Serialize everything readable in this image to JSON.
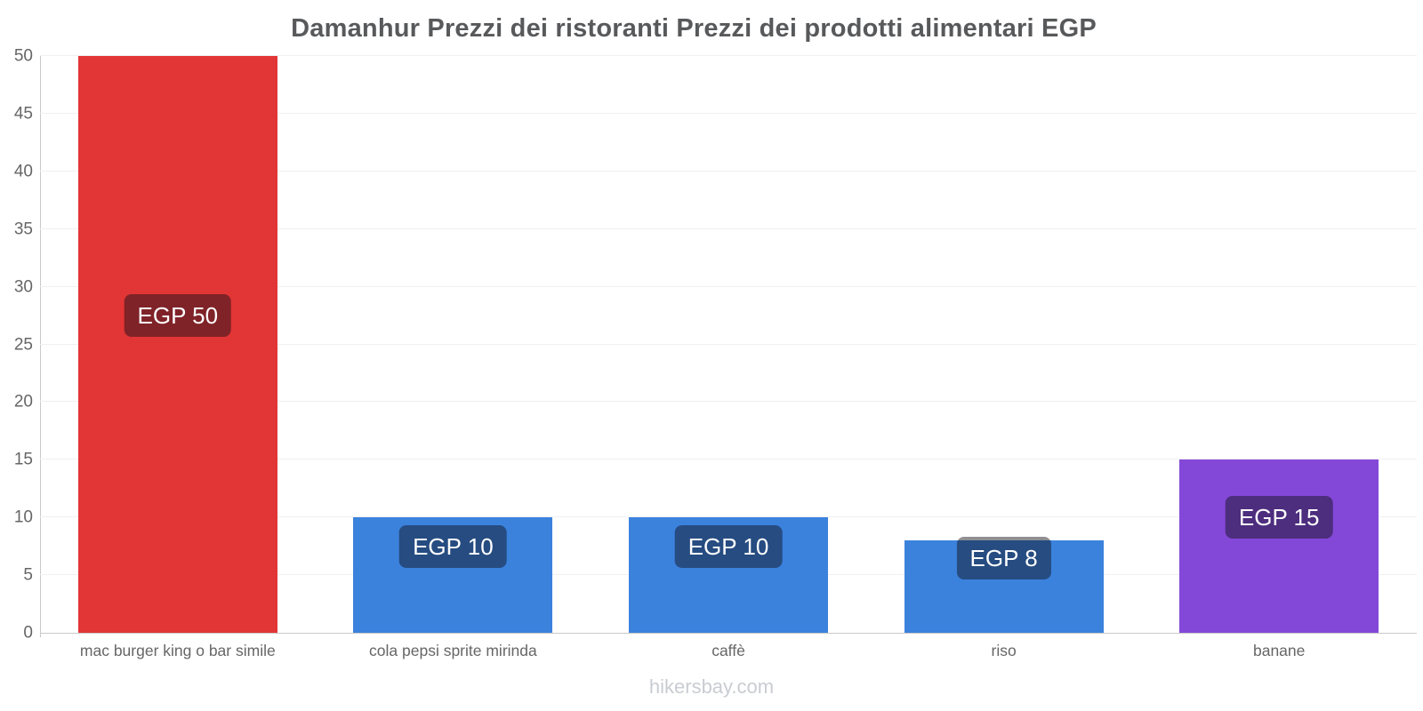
{
  "chart_data": {
    "type": "bar",
    "title": "Damanhur Prezzi dei ristoranti Prezzi dei prodotti alimentari EGP",
    "currency": "EGP",
    "categories": [
      "mac burger king o bar simile",
      "cola pepsi sprite mirinda",
      "caffè",
      "riso",
      "banane"
    ],
    "values": [
      50,
      10,
      10,
      8,
      15
    ],
    "value_labels": [
      "EGP 50",
      "EGP 10",
      "EGP 10",
      "EGP 8",
      "EGP 15"
    ],
    "bar_colors": [
      "#e23535",
      "#3b82dd",
      "#3b82dd",
      "#3b82dd",
      "#8448d8"
    ],
    "ylim": [
      0,
      50
    ],
    "yticks": [
      0,
      5,
      10,
      15,
      20,
      25,
      30,
      35,
      40,
      45,
      50
    ],
    "grid": "horizontal-light",
    "legend": "none",
    "accent_colors": {
      "grid": "#f0f0f0",
      "axis": "#c9c9c9",
      "title_text": "#58595b",
      "tick_text": "#666666",
      "value_label_text": "#ffffff"
    }
  },
  "footer": {
    "watermark": "hikersbay.com"
  }
}
